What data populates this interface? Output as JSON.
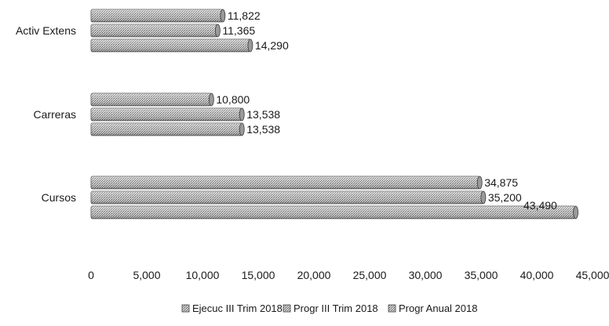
{
  "chart_data": {
    "type": "bar",
    "orientation": "horizontal",
    "categories": [
      "Activ Extens",
      "Carreras",
      "Cursos"
    ],
    "series": [
      {
        "name": "Ejecuc III Trim 2018",
        "values": [
          11822,
          10800,
          34875
        ],
        "labels": [
          "11,822",
          "10,800",
          "34,875"
        ]
      },
      {
        "name": "Progr III Trim 2018",
        "values": [
          11365,
          13538,
          35200
        ],
        "labels": [
          "11,365",
          "13,538",
          "35,200"
        ]
      },
      {
        "name": "Progr Anual 2018",
        "values": [
          14290,
          13538,
          43490
        ],
        "labels": [
          "14,290",
          "13,538",
          "43,490"
        ]
      }
    ],
    "xlim": [
      0,
      45000
    ],
    "xticks": [
      0,
      5000,
      10000,
      15000,
      20000,
      25000,
      30000,
      35000,
      40000,
      45000
    ],
    "xtick_labels": [
      "0",
      "5,000",
      "10,000",
      "15,000",
      "20,000",
      "25,000",
      "30,000",
      "35,000",
      "40,000",
      "45,000"
    ],
    "legend_position": "bottom",
    "grid": false,
    "title": "",
    "xlabel": "",
    "ylabel": ""
  }
}
